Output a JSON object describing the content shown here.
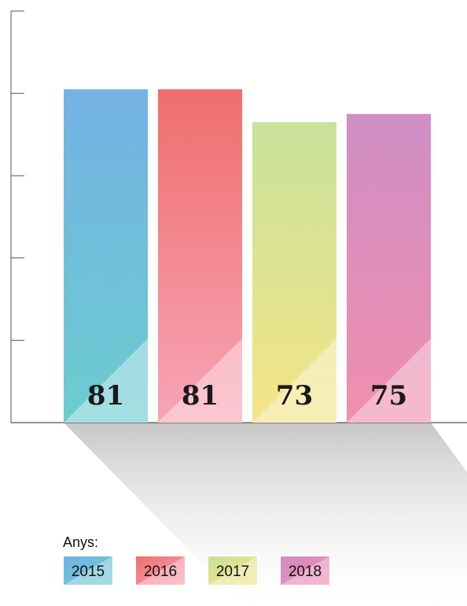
{
  "chart_data": {
    "type": "bar",
    "categories": [
      "2015",
      "2016",
      "2017",
      "2018"
    ],
    "values": [
      81,
      81,
      73,
      75
    ],
    "ylim": [
      0,
      100
    ],
    "grid": false,
    "legend": {
      "title": "Anys:",
      "placement": "bottom-left",
      "entries": [
        "2015",
        "2016",
        "2017",
        "2018"
      ]
    },
    "colors": [
      {
        "top": "#74b2e4",
        "bottom": "#6cccd0"
      },
      {
        "top": "#f06e6c",
        "bottom": "#f7a5b8"
      },
      {
        "top": "#c8e29a",
        "bottom": "#f4e488"
      },
      {
        "top": "#cf8ec5",
        "bottom": "#f08fae"
      }
    ]
  }
}
